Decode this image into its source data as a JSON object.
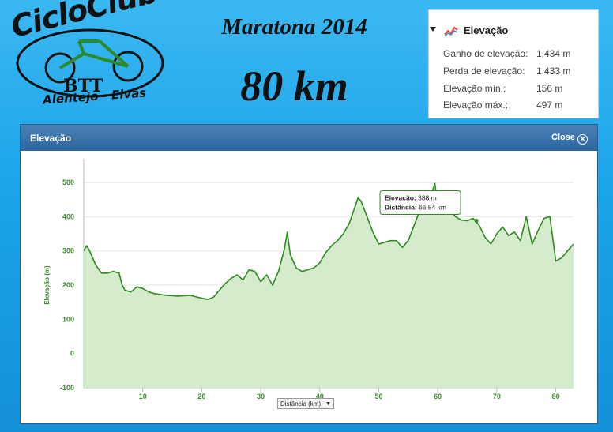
{
  "logo": {
    "title": "CicloClube",
    "btt": "BTT",
    "subtitle": "Alentejo - Elvas"
  },
  "event": {
    "title": "Maratona 2014",
    "distance": "80 km"
  },
  "stats_panel": {
    "header": "Elevação",
    "icon": "elevation-chart-icon",
    "rows": [
      {
        "label": "Ganho de elevação:",
        "value": "1,434 m"
      },
      {
        "label": "Perda de elevação:",
        "value": "1,433 m"
      },
      {
        "label": "Elevação mín.:",
        "value": "156 m"
      },
      {
        "label": "Elevação máx.:",
        "value": "497 m"
      }
    ]
  },
  "dialog": {
    "title": "Elevação",
    "close_label": "Close"
  },
  "tooltip": {
    "elev_label": "Elevação:",
    "elev_value": "388 m",
    "dist_label": "Distância:",
    "dist_value": "66.54 km"
  },
  "x_axis_select": {
    "selected": "Distância (km)"
  },
  "chart_data": {
    "type": "area",
    "title": "",
    "xlabel": "Distância (km)",
    "ylabel": "Elevação (m)",
    "xlim": [
      0,
      83
    ],
    "ylim": [
      -100,
      500
    ],
    "x_ticks": [
      10,
      20,
      30,
      40,
      50,
      60,
      70,
      80
    ],
    "y_ticks": [
      -100,
      0,
      100,
      200,
      300,
      400,
      500
    ],
    "grid": true,
    "line_color": "#2e8b1e",
    "fill_color": "#d4ebcc",
    "tooltip_point": {
      "x": 66.54,
      "y": 388
    },
    "series": [
      {
        "x": [
          0,
          0.5,
          1,
          2,
          3,
          4,
          5,
          6,
          6.5,
          7,
          8,
          9,
          10,
          11,
          12,
          14,
          16,
          18,
          20,
          21,
          22,
          23,
          24,
          25,
          26,
          27,
          28,
          29,
          30,
          31,
          32,
          33,
          34,
          34.5,
          35,
          36,
          37,
          38,
          39,
          40,
          41,
          42,
          43,
          44,
          45,
          46,
          46.5,
          47,
          48,
          49,
          50,
          51,
          52,
          53,
          54,
          55,
          56,
          57,
          58,
          59,
          59.5,
          60,
          61,
          62,
          63,
          64,
          65,
          66,
          67,
          68,
          69,
          70,
          71,
          72,
          73,
          74,
          75,
          76,
          77,
          78,
          79,
          80,
          81,
          82,
          83
        ],
        "y": [
          300,
          315,
          300,
          260,
          235,
          235,
          240,
          235,
          200,
          185,
          180,
          195,
          190,
          180,
          175,
          170,
          168,
          170,
          162,
          158,
          165,
          185,
          205,
          220,
          230,
          215,
          245,
          240,
          210,
          230,
          200,
          240,
          305,
          355,
          290,
          250,
          240,
          245,
          250,
          265,
          295,
          315,
          330,
          350,
          380,
          430,
          455,
          445,
          400,
          355,
          320,
          325,
          330,
          330,
          310,
          330,
          375,
          420,
          450,
          470,
          497,
          430,
          410,
          420,
          400,
          390,
          388,
          395,
          375,
          340,
          320,
          350,
          370,
          345,
          355,
          330,
          400,
          320,
          360,
          395,
          400,
          270,
          280,
          300,
          320
        ]
      }
    ]
  }
}
